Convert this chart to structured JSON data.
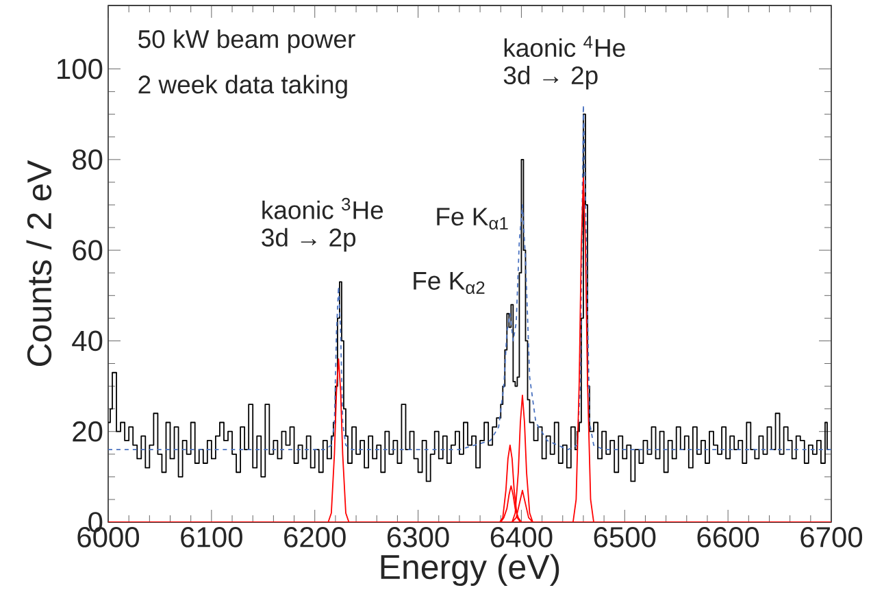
{
  "chart_data": {
    "type": "step",
    "xlabel": "Energy (eV)",
    "ylabel": "Counts / 2 eV",
    "xlim": [
      6000,
      6700
    ],
    "xticks": [
      6000,
      6100,
      6200,
      6300,
      6400,
      6500,
      6600,
      6700
    ],
    "ylim": [
      0,
      114
    ],
    "yticks": [
      0,
      20,
      40,
      60,
      80,
      100
    ],
    "annotations": [
      "50 kW beam power",
      "2 week data taking",
      {
        "text": "kaonic $^{3}$He",
        "x": 6223,
        "y": 53
      },
      {
        "text": "3d → 2p",
        "x": 6223,
        "y": 53
      },
      {
        "text": "kaonic $^{4}$He",
        "x": 6460,
        "y": 90
      },
      {
        "text": "3d → 2p",
        "x": 6460,
        "y": 90
      },
      {
        "text": "Fe K$_{α1}$",
        "x": 6401,
        "y": 80
      },
      {
        "text": "Fe K$_{α2}$",
        "x": 6389,
        "y": 48
      }
    ],
    "series": [
      {
        "color": "#000000",
        "line_style": "solid",
        "x": [
          6000,
          6002,
          6004,
          6008,
          6012,
          6016,
          6020,
          6024,
          6028,
          6032,
          6036,
          6040,
          6044,
          6048,
          6052,
          6056,
          6060,
          6064,
          6068,
          6072,
          6076,
          6080,
          6084,
          6088,
          6092,
          6096,
          6100,
          6104,
          6108,
          6112,
          6116,
          6120,
          6124,
          6128,
          6132,
          6136,
          6140,
          6144,
          6148,
          6152,
          6156,
          6160,
          6164,
          6168,
          6172,
          6176,
          6180,
          6184,
          6188,
          6192,
          6196,
          6200,
          6204,
          6208,
          6212,
          6216,
          6218,
          6220,
          6222,
          6224,
          6226,
          6228,
          6230,
          6232,
          6236,
          6240,
          6244,
          6248,
          6252,
          6256,
          6260,
          6264,
          6268,
          6272,
          6276,
          6280,
          6284,
          6288,
          6292,
          6296,
          6300,
          6304,
          6308,
          6312,
          6316,
          6320,
          6324,
          6328,
          6332,
          6336,
          6340,
          6344,
          6348,
          6352,
          6356,
          6360,
          6364,
          6368,
          6372,
          6376,
          6380,
          6382,
          6384,
          6386,
          6388,
          6390,
          6392,
          6394,
          6396,
          6398,
          6400,
          6402,
          6404,
          6406,
          6408,
          6412,
          6416,
          6420,
          6424,
          6428,
          6432,
          6436,
          6440,
          6444,
          6448,
          6452,
          6454,
          6456,
          6458,
          6460,
          6462,
          6464,
          6466,
          6470,
          6474,
          6478,
          6482,
          6486,
          6490,
          6494,
          6498,
          6502,
          6506,
          6510,
          6514,
          6518,
          6522,
          6526,
          6530,
          6534,
          6538,
          6542,
          6546,
          6550,
          6554,
          6558,
          6562,
          6566,
          6570,
          6574,
          6578,
          6582,
          6586,
          6590,
          6594,
          6598,
          6602,
          6606,
          6610,
          6614,
          6618,
          6622,
          6626,
          6630,
          6634,
          6638,
          6642,
          6646,
          6650,
          6654,
          6658,
          6662,
          6666,
          6670,
          6674,
          6678,
          6682,
          6686,
          6690,
          6694,
          6696,
          6698
        ],
        "values": [
          22,
          25,
          33,
          20,
          22,
          18,
          21,
          17,
          14,
          19,
          12,
          17,
          24,
          15,
          11,
          22,
          14,
          21,
          10,
          18,
          15,
          22,
          13,
          16,
          13,
          18,
          14,
          19,
          22,
          18,
          20,
          15,
          11,
          21,
          16,
          26,
          12,
          19,
          10,
          26,
          15,
          18,
          14,
          20,
          17,
          21,
          13,
          17,
          14,
          19,
          12,
          16,
          11,
          18,
          14,
          19,
          22,
          30,
          45,
          53,
          40,
          25,
          19,
          13,
          21,
          15,
          18,
          12,
          19,
          14,
          17,
          11,
          20,
          15,
          18,
          13,
          26,
          16,
          20,
          14,
          11,
          18,
          9,
          15,
          20,
          14,
          19,
          13,
          17,
          20,
          15,
          22,
          17,
          19,
          12,
          18,
          22,
          17,
          21,
          23,
          26,
          30,
          38,
          46,
          43,
          48,
          31,
          30,
          32,
          55,
          80,
          60,
          40,
          27,
          22,
          18,
          21,
          14,
          19,
          15,
          22,
          13,
          17,
          12,
          21,
          16,
          20,
          22,
          45,
          90,
          70,
          30,
          20,
          22,
          14,
          20,
          15,
          18,
          11,
          19,
          14,
          17,
          9,
          16,
          13,
          18,
          15,
          21,
          14,
          20,
          11,
          18,
          14,
          21,
          16,
          19,
          12,
          21,
          15,
          18,
          13,
          20,
          17,
          15,
          21,
          14,
          19,
          16,
          18,
          13,
          22,
          16,
          14,
          19,
          15,
          21,
          16,
          24,
          15,
          21,
          18,
          14,
          19,
          18,
          13,
          17,
          15,
          18,
          13,
          22,
          16,
          16
        ]
      },
      {
        "type": "line",
        "color": "#4a72c0",
        "line_style": "dashed",
        "x": [
          6000,
          6210,
          6216,
          6219,
          6221,
          6223,
          6225,
          6227,
          6230,
          6236,
          6340,
          6370,
          6378,
          6383,
          6386,
          6389,
          6392,
          6395,
          6398,
          6401,
          6404,
          6408,
          6414,
          6425,
          6445,
          6454,
          6457,
          6460,
          6463,
          6466,
          6470,
          6480,
          6700
        ],
        "values": [
          16,
          16,
          17,
          22,
          42,
          52,
          42,
          22,
          17,
          16,
          16,
          18,
          21,
          30,
          42,
          46,
          40,
          44,
          62,
          70,
          58,
          32,
          22,
          18,
          16,
          17,
          30,
          92,
          60,
          22,
          17,
          16,
          16
        ]
      },
      {
        "type": "line",
        "color": "#ff0000",
        "line_style": "solid",
        "x": [
          6000,
          6213,
          6216,
          6219,
          6221,
          6223,
          6225,
          6227,
          6230,
          6233,
          6700
        ],
        "values": [
          0,
          0,
          2,
          15,
          29,
          36,
          29,
          15,
          2,
          0,
          0
        ]
      },
      {
        "type": "line",
        "color": "#ff0000",
        "line_style": "solid",
        "x": [
          6000,
          6450,
          6453,
          6456,
          6458,
          6460,
          6462,
          6464,
          6467,
          6470,
          6700
        ],
        "values": [
          0,
          0,
          5,
          31,
          61,
          76,
          61,
          31,
          5,
          0,
          0
        ]
      },
      {
        "type": "line",
        "color": "#ff0000",
        "line_style": "solid",
        "x": [
          6000,
          6391,
          6394,
          6397,
          6399,
          6401,
          6403,
          6405,
          6408,
          6411,
          6700
        ],
        "values": [
          0,
          0,
          2,
          11,
          22,
          28,
          22,
          11,
          2,
          0,
          0
        ]
      },
      {
        "type": "line",
        "color": "#ff0000",
        "line_style": "solid",
        "x": [
          6000,
          6379,
          6382,
          6385,
          6387,
          6389,
          6391,
          6393,
          6396,
          6399,
          6700
        ],
        "values": [
          0,
          0,
          1,
          7,
          14,
          17,
          14,
          7,
          1,
          0,
          0
        ]
      },
      {
        "type": "line",
        "color": "#ff0000",
        "line_style": "solid",
        "x": [
          6000,
          6380,
          6383,
          6386,
          6388,
          6390,
          6392,
          6394,
          6397,
          6400,
          6700
        ],
        "values": [
          0,
          0,
          1,
          3,
          6,
          8,
          6,
          3,
          1,
          0,
          0
        ]
      },
      {
        "type": "line",
        "color": "#ff0000",
        "line_style": "solid",
        "x": [
          6000,
          6391,
          6395,
          6397,
          6399,
          6401,
          6403,
          6405,
          6407,
          6411,
          6700
        ],
        "values": [
          0,
          0,
          1,
          3,
          5,
          7,
          5,
          3,
          1,
          0,
          0
        ]
      }
    ]
  }
}
